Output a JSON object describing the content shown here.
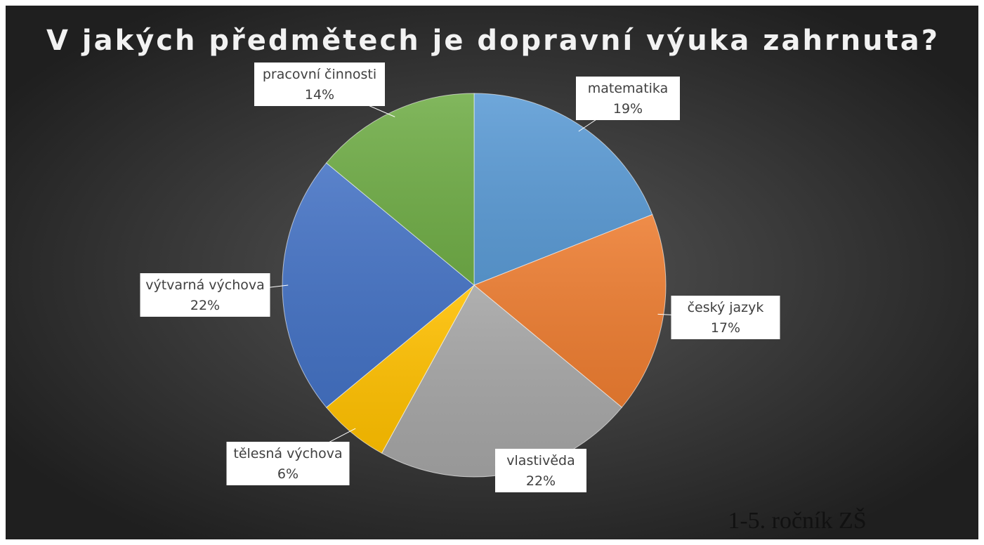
{
  "chart_data": {
    "type": "pie",
    "title": "V jakých předmětech je dopravní výuka zahrnuta?",
    "annotation": "1-5. ročník ZŠ",
    "categories": [
      "matematika",
      "český jazyk",
      "vlastivěda",
      "tělesná výchova",
      "výtvarná výchova",
      "pracovní činnosti"
    ],
    "values": [
      19,
      17,
      22,
      6,
      22,
      14
    ],
    "value_labels": [
      "19%",
      "17%",
      "22%",
      "6%",
      "22%",
      "14%"
    ],
    "colors": [
      "#5b9bd5",
      "#ed7d31",
      "#a5a5a5",
      "#ffc000",
      "#4472c4",
      "#70ad47"
    ]
  }
}
